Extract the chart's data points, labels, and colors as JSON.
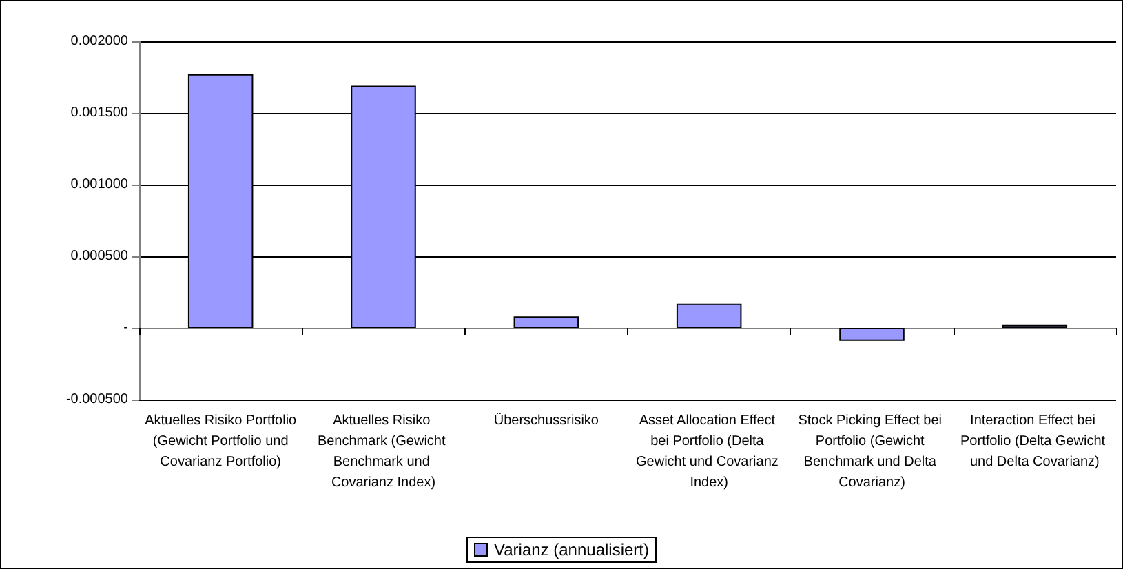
{
  "chart_data": {
    "type": "bar",
    "categories": [
      "Aktuelles Risiko Portfolio (Gewicht Portfolio und Covarianz Portfolio)",
      "Aktuelles Risiko Benchmark (Gewicht Benchmark und Covarianz Index)",
      "Überschussrisiko",
      "Asset Allocation Effect bei Portfolio (Delta Gewicht und Covarianz Index)",
      "Stock Picking Effect bei Portfolio (Gewicht Benchmark und Delta Covarianz)",
      "Interaction Effect bei Portfolio (Delta Gewicht und Delta Covarianz)"
    ],
    "series": [
      {
        "name": "Varianz (annualisiert)",
        "color": "#9999ff",
        "values": [
          0.00177,
          0.00169,
          8e-05,
          0.00017,
          -9e-05,
          2e-05
        ]
      }
    ],
    "ylim": [
      -0.0005,
      0.002
    ],
    "yticks": [
      {
        "value": -0.0005,
        "label": "-0.000500"
      },
      {
        "value": 0,
        "label": "-"
      },
      {
        "value": 0.0005,
        "label": "0.000500"
      },
      {
        "value": 0.001,
        "label": "0.001000"
      },
      {
        "value": 0.0015,
        "label": "0.001500"
      },
      {
        "value": 0.002,
        "label": "0.002000"
      }
    ],
    "grid": "y",
    "legend": "bottom"
  }
}
